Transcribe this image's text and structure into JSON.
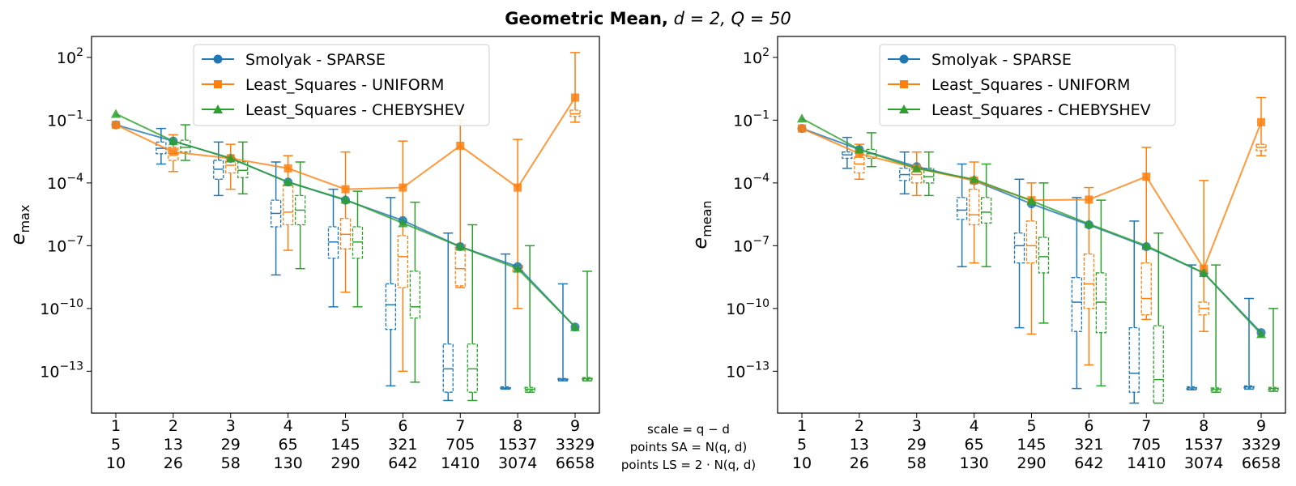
{
  "figure": {
    "title_bold": "Geometric Mean,",
    "title_math": "d = 2, Q = 50"
  },
  "colors": {
    "sparse": "#1f77b4",
    "uniform": "#ff7f0e",
    "chebyshev": "#2ca02c"
  },
  "x_tick_rows": {
    "scale": [
      "1",
      "2",
      "3",
      "4",
      "5",
      "6",
      "7",
      "8",
      "9"
    ],
    "points_sa": [
      "5",
      "13",
      "29",
      "65",
      "145",
      "321",
      "705",
      "1537",
      "3329"
    ],
    "points_ls": [
      "10",
      "26",
      "58",
      "130",
      "290",
      "642",
      "1410",
      "3074",
      "6658"
    ]
  },
  "x_caption": [
    "scale = q − d",
    "points SA = N(q, d)",
    "points LS = 2 · N(q, d)"
  ],
  "chart_data": [
    {
      "type": "line",
      "id": "emax",
      "ylabel": "e_max",
      "y_scale": "log",
      "ylim": [
        1e-15,
        1000.0
      ],
      "yticks": [
        2,
        -1,
        -4,
        -7,
        -10,
        -13
      ],
      "x": [
        1,
        2,
        3,
        4,
        5,
        6,
        7,
        8,
        9
      ],
      "legend_position": "top-center",
      "series": [
        {
          "name": "Smolyak - SPARSE",
          "key": "sparse",
          "marker": "circle",
          "values": [
            0.06,
            0.01,
            0.0015,
            0.00011,
            1.5e-05,
            1.6e-06,
            9e-08,
            1e-08,
            1.3e-11
          ],
          "box": [
            {
              "x": 1,
              "q1": null,
              "med": null,
              "q3": null,
              "lo": null,
              "hi": null
            },
            {
              "x": 2,
              "q1": 0.0025,
              "med": 0.0045,
              "q3": 0.009,
              "lo": 0.0008,
              "hi": 0.04
            },
            {
              "x": 3,
              "q1": 0.00015,
              "med": 0.00045,
              "q3": 0.0012,
              "lo": 2.5e-05,
              "hi": 0.009
            },
            {
              "x": 4,
              "q1": 8e-07,
              "med": 3.5e-06,
              "q3": 1.5e-05,
              "lo": 4e-09,
              "hi": 0.001
            },
            {
              "x": 5,
              "q1": 2.5e-08,
              "med": 1.5e-07,
              "q3": 8e-07,
              "lo": 1.2e-10,
              "hi": 5e-05
            },
            {
              "x": 6,
              "q1": 1e-11,
              "med": 1.5e-10,
              "q3": 1.5e-09,
              "lo": 2e-14,
              "hi": 2e-05
            },
            {
              "x": 7,
              "q1": 1e-14,
              "med": 1.3e-13,
              "q3": 2e-12,
              "lo": 4e-15,
              "hi": 4e-07
            },
            {
              "x": 8,
              "q1": 1.5e-14,
              "med": 1.6e-14,
              "q3": 1.8e-14,
              "lo": 1.4e-14,
              "hi": 4e-08
            },
            {
              "x": 9,
              "q1": 4e-14,
              "med": 4.2e-14,
              "q3": 4.5e-14,
              "lo": 3.5e-14,
              "hi": 1.5e-09
            }
          ]
        },
        {
          "name": "Least_Squares - UNIFORM",
          "key": "uniform",
          "marker": "square",
          "values": [
            0.06,
            0.003,
            0.0015,
            0.0005,
            5e-05,
            6e-05,
            0.006,
            6e-05,
            1.2
          ],
          "box": [
            {
              "x": 1,
              "q1": null,
              "med": null,
              "q3": null,
              "lo": null,
              "hi": null
            },
            {
              "x": 2,
              "q1": 0.0012,
              "med": 0.0025,
              "q3": 0.005,
              "lo": 0.00035,
              "hi": 0.02
            },
            {
              "x": 3,
              "q1": 0.0003,
              "med": 0.0007,
              "q3": 0.0016,
              "lo": 5e-05,
              "hi": 0.007
            },
            {
              "x": 4,
              "q1": 1e-06,
              "med": 4e-06,
              "q3": 8e-05,
              "lo": 6e-08,
              "hi": 0.002
            },
            {
              "x": 5,
              "q1": 7e-08,
              "med": 3.5e-07,
              "q3": 2e-06,
              "lo": 6e-10,
              "hi": 0.003
            },
            {
              "x": 6,
              "q1": 1e-09,
              "med": 3e-08,
              "q3": 3e-07,
              "lo": 1e-13,
              "hi": 0.01
            },
            {
              "x": 7,
              "q1": 1.2e-09,
              "med": 8e-09,
              "q3": 1.2e-07,
              "lo": 1e-09,
              "hi": 0.1
            },
            {
              "x": 8,
              "q1": 6e-09,
              "med": 8e-09,
              "q3": 1.2e-08,
              "lo": 1e-10,
              "hi": 0.012
            },
            {
              "x": 9,
              "q1": 0.15,
              "med": 0.2,
              "q3": 0.3,
              "lo": 0.08,
              "hi": 170
            }
          ]
        },
        {
          "name": "Least_Squares - CHEBYSHEV",
          "key": "chebyshev",
          "marker": "triangle",
          "values": [
            0.2,
            0.01,
            0.0015,
            0.00011,
            1.6e-05,
            1.2e-06,
            9e-08,
            8e-09,
            1.3e-11
          ],
          "box": [
            {
              "x": 1,
              "q1": null,
              "med": null,
              "q3": null,
              "lo": null,
              "hi": null
            },
            {
              "x": 2,
              "q1": 0.003,
              "med": 0.005,
              "q3": 0.011,
              "lo": 0.0012,
              "hi": 0.06
            },
            {
              "x": 3,
              "q1": 0.00018,
              "med": 0.0004,
              "q3": 0.001,
              "lo": 3e-05,
              "hi": 0.009
            },
            {
              "x": 4,
              "q1": 1e-06,
              "med": 5e-06,
              "q3": 2.5e-05,
              "lo": 8e-09,
              "hi": 0.001
            },
            {
              "x": 5,
              "q1": 2.5e-08,
              "med": 1.5e-07,
              "q3": 8e-07,
              "lo": 1.2e-10,
              "hi": 4e-05
            },
            {
              "x": 6,
              "q1": 3.5e-11,
              "med": 1.2e-10,
              "q3": 6e-09,
              "lo": 3e-14,
              "hi": 1.2e-05
            },
            {
              "x": 7,
              "q1": 1e-14,
              "med": 1.3e-13,
              "q3": 2e-12,
              "lo": 4e-15,
              "hi": 1e-06
            },
            {
              "x": 8,
              "q1": 1.2e-14,
              "med": 1.4e-14,
              "q3": 1.7e-14,
              "lo": 1e-14,
              "hi": 1e-07
            },
            {
              "x": 9,
              "q1": 4e-14,
              "med": 4.5e-14,
              "q3": 5e-14,
              "lo": 3.5e-14,
              "hi": 6e-09
            }
          ]
        }
      ]
    },
    {
      "type": "line",
      "id": "emean",
      "ylabel": "e_mean",
      "y_scale": "log",
      "ylim": [
        1e-15,
        1000.0
      ],
      "yticks": [
        2,
        -1,
        -4,
        -7,
        -10,
        -13
      ],
      "x": [
        1,
        2,
        3,
        4,
        5,
        6,
        7,
        8,
        9
      ],
      "legend_position": "top-center",
      "series": [
        {
          "name": "Smolyak - SPARSE",
          "key": "sparse",
          "marker": "circle",
          "values": [
            0.04,
            0.004,
            0.0006,
            0.00013,
            1e-05,
            1e-06,
            9e-08,
            5e-09,
            7e-12
          ],
          "box": [
            {
              "x": 1,
              "q1": null,
              "med": null,
              "q3": null,
              "lo": null,
              "hi": null
            },
            {
              "x": 2,
              "q1": 0.0015,
              "med": 0.0022,
              "q3": 0.003,
              "lo": 0.0005,
              "hi": 0.015
            },
            {
              "x": 3,
              "q1": 0.00013,
              "med": 0.00025,
              "q3": 0.0005,
              "lo": 3e-05,
              "hi": 0.003
            },
            {
              "x": 4,
              "q1": 1.8e-06,
              "med": 5e-06,
              "q3": 2e-05,
              "lo": 1e-08,
              "hi": 0.0008
            },
            {
              "x": 5,
              "q1": 1.5e-08,
              "med": 1e-07,
              "q3": 4e-07,
              "lo": 1.2e-11,
              "hi": 0.00015
            },
            {
              "x": 6,
              "q1": 8e-12,
              "med": 2e-10,
              "q3": 3e-09,
              "lo": 1.5e-14,
              "hi": 2e-05
            },
            {
              "x": 7,
              "q1": 1e-14,
              "med": 8e-14,
              "q3": 1.2e-11,
              "lo": 3e-15,
              "hi": 1.5e-06
            },
            {
              "x": 8,
              "q1": 1.4e-14,
              "med": 1.6e-14,
              "q3": 1.8e-14,
              "lo": 1.3e-14,
              "hi": 1.2e-08
            },
            {
              "x": 9,
              "q1": 1.6e-14,
              "med": 1.8e-14,
              "q3": 2e-14,
              "lo": 1.4e-14,
              "hi": 3e-10
            }
          ]
        },
        {
          "name": "Least_Squares - UNIFORM",
          "key": "uniform",
          "marker": "square",
          "values": [
            0.04,
            0.0025,
            0.0005,
            0.00013,
            1.5e-05,
            1.6e-05,
            0.0002,
            8e-09,
            0.08
          ],
          "box": [
            {
              "x": 1,
              "q1": null,
              "med": null,
              "q3": null,
              "lo": null,
              "hi": null
            },
            {
              "x": 2,
              "q1": 0.0003,
              "med": 0.0008,
              "q3": 0.0017,
              "lo": 0.00015,
              "hi": 0.007
            },
            {
              "x": 3,
              "q1": 0.0001,
              "med": 0.00025,
              "q3": 0.0006,
              "lo": 2.5e-05,
              "hi": 0.003
            },
            {
              "x": 4,
              "q1": 1e-06,
              "med": 3e-06,
              "q3": 5e-05,
              "lo": 1.5e-08,
              "hi": 0.001
            },
            {
              "x": 5,
              "q1": 1.5e-08,
              "med": 1e-07,
              "q3": 1.5e-06,
              "lo": 6e-12,
              "hi": 0.0001
            },
            {
              "x": 6,
              "q1": 1e-10,
              "med": 1.5e-09,
              "q3": 4e-08,
              "lo": 2e-13,
              "hi": 6e-05
            },
            {
              "x": 7,
              "q1": 5e-11,
              "med": 3e-10,
              "q3": 1.5e-08,
              "lo": 3e-11,
              "hi": 0.005
            },
            {
              "x": 8,
              "q1": 5e-11,
              "med": 1e-10,
              "q3": 2e-10,
              "lo": 8e-12,
              "hi": 0.00013
            },
            {
              "x": 9,
              "q1": 0.0035,
              "med": 0.005,
              "q3": 0.007,
              "lo": 0.002,
              "hi": 1.2
            }
          ]
        },
        {
          "name": "Least_Squares - CHEBYSHEV",
          "key": "chebyshev",
          "marker": "triangle",
          "values": [
            0.12,
            0.004,
            0.0005,
            0.00015,
            1.4e-05,
            1.1e-06,
            1e-07,
            5e-09,
            6e-12
          ],
          "box": [
            {
              "x": 1,
              "q1": null,
              "med": null,
              "q3": null,
              "lo": null,
              "hi": null
            },
            {
              "x": 2,
              "q1": 0.0015,
              "med": 0.0025,
              "q3": 0.004,
              "lo": 0.0006,
              "hi": 0.025
            },
            {
              "x": 3,
              "q1": 0.0001,
              "med": 0.0002,
              "q3": 0.0005,
              "lo": 2.5e-05,
              "hi": 0.003
            },
            {
              "x": 4,
              "q1": 1.2e-06,
              "med": 4e-06,
              "q3": 2e-05,
              "lo": 1e-08,
              "hi": 0.0008
            },
            {
              "x": 5,
              "q1": 5e-09,
              "med": 3e-08,
              "q3": 2.5e-07,
              "lo": 2e-11,
              "hi": 0.0001
            },
            {
              "x": 6,
              "q1": 7e-12,
              "med": 2e-10,
              "q3": 5e-09,
              "lo": 2e-14,
              "hi": 1.5e-05
            },
            {
              "x": 7,
              "q1": 3e-15,
              "med": 4e-14,
              "q3": 1.5e-11,
              "lo": 3e-15,
              "hi": 4e-07
            },
            {
              "x": 8,
              "q1": 1.2e-14,
              "med": 1.4e-14,
              "q3": 1.6e-14,
              "lo": 1e-14,
              "hi": 1.2e-08
            },
            {
              "x": 9,
              "q1": 1.3e-14,
              "med": 1.5e-14,
              "q3": 1.7e-14,
              "lo": 1.1e-14,
              "hi": 1e-10
            }
          ]
        }
      ]
    }
  ]
}
